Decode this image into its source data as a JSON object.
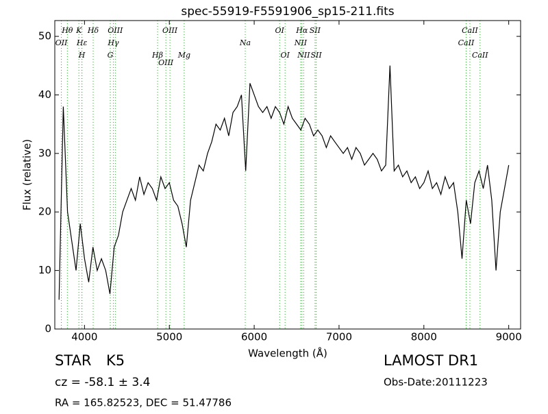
{
  "chart_data": {
    "type": "line",
    "title": "spec-55919-F5591906_sp15-211.fits",
    "x_label": "Wavelength (Å)",
    "y_label": "Flux (relative)",
    "xlim": [
      3650,
      9140
    ],
    "xticks": [
      4000,
      5000,
      6000,
      7000,
      8000,
      9000
    ],
    "ylim": [
      0,
      52.7
    ],
    "yticks": [
      0,
      10,
      20,
      30,
      40,
      50
    ],
    "color": "#000000",
    "line_color": "#2ca02c",
    "x": [
      3700,
      3750,
      3800,
      3850,
      3900,
      3950,
      4000,
      4050,
      4100,
      4150,
      4200,
      4250,
      4300,
      4350,
      4400,
      4450,
      4500,
      4550,
      4600,
      4650,
      4700,
      4750,
      4800,
      4850,
      4900,
      4950,
      5000,
      5050,
      5100,
      5150,
      5200,
      5250,
      5300,
      5350,
      5400,
      5450,
      5500,
      5550,
      5600,
      5650,
      5700,
      5750,
      5800,
      5850,
      5900,
      5950,
      6000,
      6050,
      6100,
      6150,
      6200,
      6250,
      6300,
      6350,
      6400,
      6450,
      6500,
      6550,
      6600,
      6650,
      6700,
      6750,
      6800,
      6850,
      6900,
      6950,
      7000,
      7050,
      7100,
      7150,
      7200,
      7250,
      7300,
      7350,
      7400,
      7450,
      7500,
      7550,
      7600,
      7650,
      7700,
      7750,
      7800,
      7850,
      7900,
      7950,
      8000,
      8050,
      8100,
      8150,
      8200,
      8250,
      8300,
      8350,
      8400,
      8450,
      8500,
      8550,
      8600,
      8650,
      8700,
      8750,
      8800,
      8850,
      8900,
      8950,
      9000
    ],
    "values": [
      5,
      38,
      20,
      15,
      10,
      18,
      12,
      8,
      14,
      10,
      12,
      10,
      6,
      14,
      16,
      20,
      22,
      24,
      22,
      26,
      23,
      25,
      24,
      22,
      26,
      24,
      25,
      22,
      21,
      18,
      14,
      22,
      25,
      28,
      27,
      30,
      32,
      35,
      34,
      36,
      33,
      37,
      38,
      40,
      27,
      42,
      40,
      38,
      37,
      38,
      36,
      38,
      37,
      35,
      38,
      36,
      35,
      34,
      36,
      35,
      33,
      34,
      33,
      31,
      33,
      32,
      31,
      30,
      31,
      29,
      31,
      30,
      28,
      29,
      30,
      29,
      27,
      28,
      45,
      27,
      28,
      26,
      27,
      25,
      26,
      24,
      25,
      27,
      24,
      25,
      23,
      26,
      24,
      25,
      20,
      12,
      22,
      18,
      25,
      27,
      24,
      28,
      22,
      10,
      20,
      24,
      28
    ],
    "lines": [
      {
        "label": "Hθ",
        "wavelength": 3798
      },
      {
        "label": "K",
        "wavelength": 3934
      },
      {
        "label": "Hδ",
        "wavelength": 4102
      },
      {
        "label": "OIII",
        "wavelength": 4363
      },
      {
        "label": "OIII",
        "wavelength": 5007
      },
      {
        "label": "OI",
        "wavelength": 6300
      },
      {
        "label": "Hα",
        "wavelength": 6563
      },
      {
        "label": "SII",
        "wavelength": 6717
      },
      {
        "label": "CaII",
        "wavelength": 8542
      },
      {
        "label": "OII",
        "wavelength": 3727
      },
      {
        "label": "Hε",
        "wavelength": 3970
      },
      {
        "label": "Hγ",
        "wavelength": 4340
      },
      {
        "label": "Na",
        "wavelength": 5894
      },
      {
        "label": "NII",
        "wavelength": 6548
      },
      {
        "label": "CaII",
        "wavelength": 8498
      },
      {
        "label": "H",
        "wavelength": 3969
      },
      {
        "label": "G",
        "wavelength": 4304
      },
      {
        "label": "Hβ",
        "wavelength": 4861
      },
      {
        "label": "Mg",
        "wavelength": 5175
      },
      {
        "label": "OI",
        "wavelength": 6364
      },
      {
        "label": "NII",
        "wavelength": 6584
      },
      {
        "label": "SII",
        "wavelength": 6731
      },
      {
        "label": "CaII",
        "wavelength": 8662
      },
      {
        "label": "OIII",
        "wavelength": 4959
      }
    ]
  },
  "info": {
    "object_class": "STAR",
    "subclass": "K5",
    "cz": "cz = -58.1 ± 3.4",
    "coords": "RA = 165.82523, DEC = 51.47786",
    "survey": "LAMOST DR1",
    "obs_date": "Obs-Date:20111223"
  }
}
